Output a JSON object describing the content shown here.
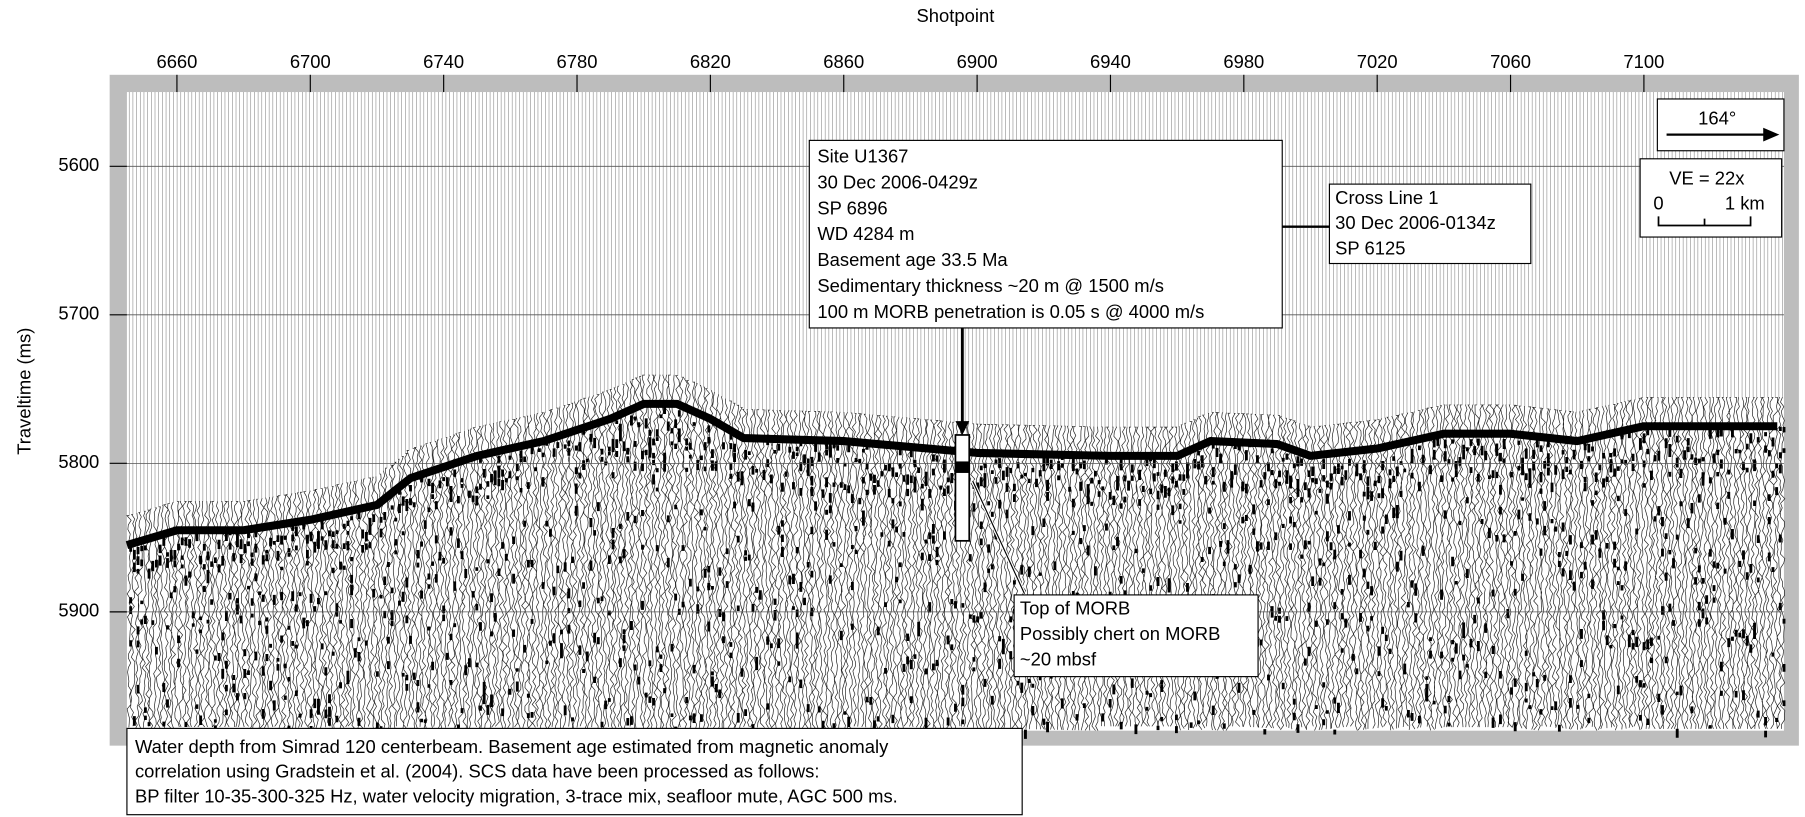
{
  "chart_data": {
    "type": "seismic",
    "x_label": "Shotpoint",
    "y_label": "Traveltime (ms)",
    "xlim": [
      6645,
      7142
    ],
    "xticks": [
      6660,
      6700,
      6740,
      6780,
      6820,
      6860,
      6900,
      6940,
      6980,
      7020,
      7060,
      7100
    ],
    "ylim": [
      5550,
      5980
    ],
    "yticks": [
      5600,
      5700,
      5800,
      5900
    ],
    "grid": true,
    "x": [
      6645,
      6660,
      6680,
      6700,
      6720,
      6730,
      6750,
      6770,
      6790,
      6800,
      6810,
      6820,
      6830,
      6860,
      6900,
      6940,
      6960,
      6970,
      6990,
      7000,
      7020,
      7040,
      7060,
      7080,
      7100,
      7140
    ],
    "series": [
      {
        "color": "#000000",
        "values": [
          5855,
          5845,
          5845,
          5838,
          5828,
          5810,
          5795,
          5785,
          5770,
          5760,
          5760,
          5770,
          5783,
          5785,
          5793,
          5795,
          5795,
          5785,
          5787,
          5795,
          5790,
          5780,
          5780,
          5785,
          5775,
          5775
        ]
      }
    ],
    "site_box": [
      "Site U1367",
      "30 Dec 2006-0429z",
      "SP 6896",
      "WD 4284 m",
      "Basement age 33.5 Ma",
      "Sedimentary thickness ~20 m @ 1500 m/s",
      "100 m MORB penetration is 0.05 s @ 4000 m/s"
    ],
    "cross_line_box": [
      "Cross Line 1",
      "30 Dec 2006-0134z",
      "SP 6125"
    ],
    "morb_box": [
      "Top of MORB",
      "Possibly chert on MORB",
      "~20 mbsf"
    ],
    "azimuth": "164°",
    "scale_box": {
      "ve": "VE = 22x",
      "left": "0",
      "right": "1 km"
    },
    "note": [
      "Water depth from Simrad 120 centerbeam. Basement age estimated from magnetic anomaly",
      "correlation using Gradstein et al. (2004).  SCS data have been processed as follows:",
      "BP filter 10-35-300-325 Hz, water velocity migration, 3-trace mix, seafloor mute, AGC 500 ms."
    ]
  }
}
